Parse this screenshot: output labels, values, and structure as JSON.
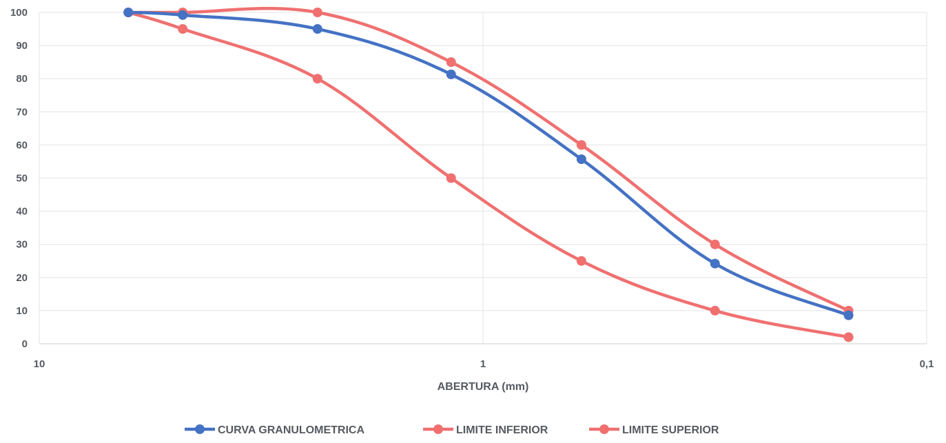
{
  "chart_data": {
    "type": "line",
    "title": "",
    "xlabel": "ABERTURA (mm)",
    "ylabel": "",
    "x_scale": "log-reversed",
    "xlim": [
      10,
      0.1
    ],
    "ylim": [
      0,
      100
    ],
    "x_tick_labels": [
      "10",
      "1",
      "0,1"
    ],
    "y_ticks": [
      0,
      10,
      20,
      30,
      40,
      50,
      60,
      70,
      80,
      90,
      100
    ],
    "grid": true,
    "legend_position": "bottom",
    "colors": {
      "blue": "#4472c4",
      "red": "#f07070",
      "grid": "#e3e3e3",
      "text": "#555a60"
    },
    "series": [
      {
        "name": "CURVA GRANULOMETRICA",
        "color": "#4472c4",
        "x": [
          6.3,
          4.75,
          2.36,
          1.18,
          0.6,
          0.3,
          0.15
        ],
        "y": [
          100,
          99.2,
          95,
          81.3,
          55.7,
          24.2,
          8.6
        ]
      },
      {
        "name": "LIMITE INFERIOR",
        "color": "#f07070",
        "x": [
          6.3,
          4.75,
          2.36,
          1.18,
          0.6,
          0.3,
          0.15
        ],
        "y": [
          100,
          100,
          100,
          85,
          60,
          30,
          10
        ]
      },
      {
        "name": "LIMITE SUPERIOR",
        "color": "#f07070",
        "x": [
          6.3,
          4.75,
          2.36,
          1.18,
          0.6,
          0.3,
          0.15
        ],
        "y": [
          100,
          95,
          80,
          50,
          25,
          10,
          2
        ]
      }
    ]
  }
}
